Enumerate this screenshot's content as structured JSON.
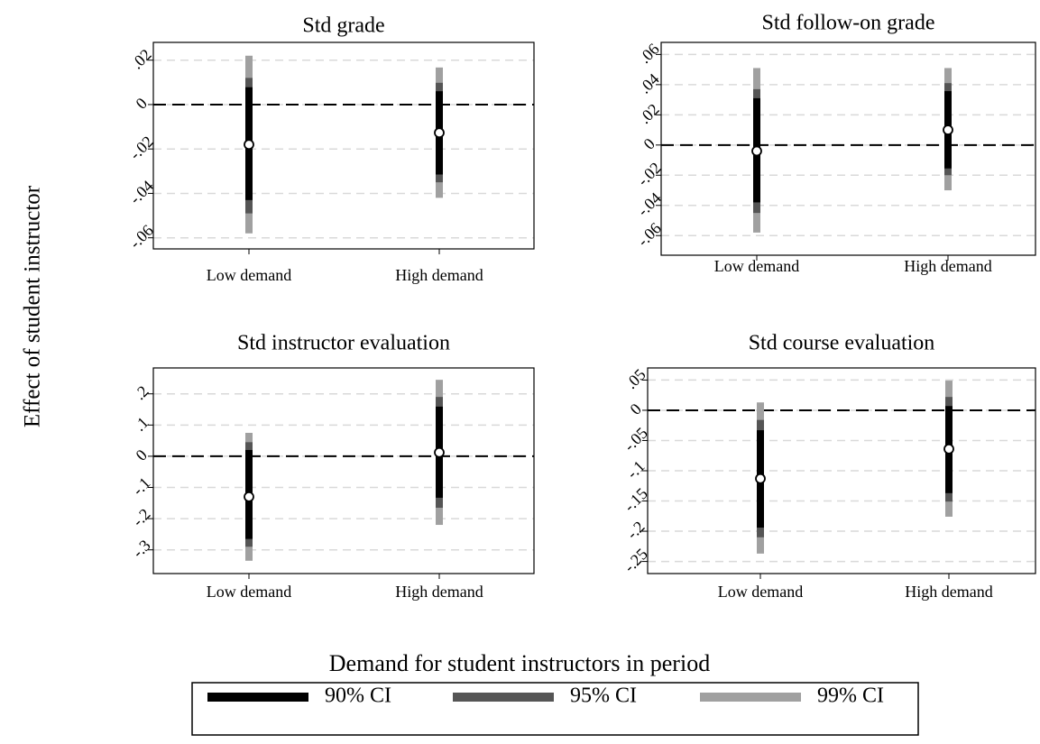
{
  "y_label": "Effect of student instructor",
  "x_label": "Demand for student instructors in period",
  "legend": [
    {
      "name": "90% CI",
      "color": "#000000"
    },
    {
      "name": "95% CI",
      "color": "#555555"
    },
    {
      "name": "99% CI",
      "color": "#a0a0a0"
    }
  ],
  "chart_data": [
    {
      "type": "coefplot",
      "title": "Std grade",
      "categories": [
        "Low demand",
        "High demand"
      ],
      "values": [
        -0.018,
        -0.0127
      ],
      "ci": [
        {
          "low": [
            -0.043,
            -0.0315
          ],
          "high": [
            0.0078,
            0.006
          ]
        },
        {
          "low": [
            -0.049,
            -0.035
          ],
          "high": [
            0.012,
            0.0098
          ]
        },
        {
          "low": [
            -0.058,
            -0.042
          ],
          "high": [
            0.022,
            0.0167
          ]
        }
      ],
      "ylim": [
        -0.065,
        0.028
      ],
      "yticks": [
        {
          "value": -0.06,
          "label": "-.06"
        },
        {
          "value": -0.04,
          "label": "-.04"
        },
        {
          "value": -0.02,
          "label": "-.02"
        },
        0,
        {
          "value": 0.02,
          "label": ".02"
        }
      ],
      "grid": true,
      "refline": 0
    },
    {
      "type": "coefplot",
      "title": "Std follow-on grade",
      "categories": [
        "Low demand",
        "High demand"
      ],
      "values": [
        -0.004,
        0.01
      ],
      "ci": [
        {
          "low": [
            -0.038,
            -0.0155
          ],
          "high": [
            0.031,
            0.0357
          ]
        },
        {
          "low": [
            -0.045,
            -0.02
          ],
          "high": [
            0.037,
            0.041
          ]
        },
        {
          "low": [
            -0.058,
            -0.03
          ],
          "high": [
            0.051,
            0.051
          ]
        }
      ],
      "ylim": [
        -0.073,
        0.068
      ],
      "yticks": [
        {
          "value": -0.06,
          "label": "-.06"
        },
        {
          "value": -0.04,
          "label": "-.04"
        },
        {
          "value": -0.02,
          "label": "-.02"
        },
        0,
        {
          "value": 0.02,
          "label": ".02"
        },
        {
          "value": 0.04,
          "label": ".04"
        },
        {
          "value": 0.06,
          "label": ".06"
        }
      ],
      "grid": true,
      "refline": 0
    },
    {
      "type": "coefplot",
      "title": "Std instructor evaluation",
      "categories": [
        "Low demand",
        "High demand"
      ],
      "values": [
        -0.13,
        0.012
      ],
      "ci": [
        {
          "low": [
            -0.265,
            -0.133
          ],
          "high": [
            0.02,
            0.159
          ]
        },
        {
          "low": [
            -0.29,
            -0.165
          ],
          "high": [
            0.045,
            0.19
          ]
        },
        {
          "low": [
            -0.335,
            -0.22
          ],
          "high": [
            0.075,
            0.245
          ]
        }
      ],
      "ylim": [
        -0.376,
        0.283
      ],
      "yticks": [
        {
          "value": -0.3,
          "label": "-.3"
        },
        {
          "value": -0.2,
          "label": "-.2"
        },
        {
          "value": -0.1,
          "label": "-.1"
        },
        0,
        {
          "value": 0.1,
          "label": ".1"
        },
        {
          "value": 0.2,
          "label": ".2"
        }
      ],
      "grid": true,
      "refline": 0
    },
    {
      "type": "coefplot",
      "title": "Std course evaluation",
      "categories": [
        "Low demand",
        "High demand"
      ],
      "values": [
        -0.113,
        -0.064
      ],
      "ci": [
        {
          "low": [
            -0.194,
            -0.137
          ],
          "high": [
            -0.033,
            0.007
          ]
        },
        {
          "low": [
            -0.21,
            -0.151
          ],
          "high": [
            -0.016,
            0.022
          ]
        },
        {
          "low": [
            -0.237,
            -0.176
          ],
          "high": [
            0.013,
            0.049
          ]
        }
      ],
      "ylim": [
        -0.27,
        0.07
      ],
      "yticks": [
        {
          "value": -0.25,
          "label": "-.25"
        },
        {
          "value": -0.2,
          "label": "-.2"
        },
        {
          "value": -0.15,
          "label": "-.15"
        },
        {
          "value": -0.1,
          "label": "-.1"
        },
        {
          "value": -0.05,
          "label": "-.05"
        },
        0,
        {
          "value": 0.05,
          "label": ".05"
        }
      ],
      "grid": true,
      "refline": 0
    }
  ]
}
